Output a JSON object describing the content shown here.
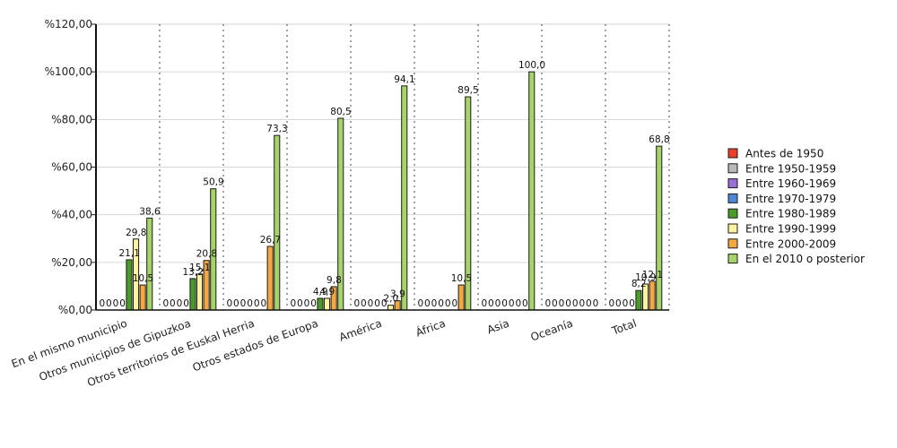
{
  "chart_data": {
    "type": "bar",
    "title": "",
    "xlabel": "",
    "ylabel": "",
    "ylim": [
      0,
      120
    ],
    "y_ticks": [
      "%0,00",
      "%20,00",
      "%40,00",
      "%60,00",
      "%80,00",
      "%100,00",
      "%120,00"
    ],
    "grid": "horizontal lines and dotted vertical separators between categories",
    "legend_position": "right",
    "categories": [
      "En el mismo municipio",
      "Otros municipios de Gipuzkoa",
      "Otros territorios de Euskal Herria",
      "Otros estados de Europa",
      "América",
      "África",
      "Asia",
      "Oceanía",
      "Total"
    ],
    "series": [
      {
        "name": "Antes de 1950",
        "color": "#e8402c",
        "values": [
          0,
          0,
          0,
          0,
          0,
          0,
          0,
          0,
          0
        ],
        "labels": [
          "0",
          "0",
          "0",
          "0",
          "0",
          "0",
          "0",
          "0",
          "0"
        ]
      },
      {
        "name": "Entre 1950-1959",
        "color": "#b9b9b9",
        "values": [
          0,
          0,
          0,
          0,
          0,
          0,
          0,
          0,
          0
        ],
        "labels": [
          "0",
          "0",
          "0",
          "0",
          "0",
          "0",
          "0",
          "0",
          "0"
        ]
      },
      {
        "name": "Entre 1960-1969",
        "color": "#9b6fd6",
        "values": [
          0,
          0,
          0,
          0,
          0,
          0,
          0,
          0,
          0
        ],
        "labels": [
          "0",
          "0",
          "0",
          "0",
          "0",
          "0",
          "0",
          "0",
          "0"
        ]
      },
      {
        "name": "Entre 1970-1979",
        "color": "#4f86d8",
        "values": [
          0,
          0,
          0,
          0,
          0,
          0,
          0,
          0,
          0
        ],
        "labels": [
          "0",
          "0",
          "0",
          "0",
          "0",
          "0",
          "0",
          "0",
          "0"
        ]
      },
      {
        "name": "Entre 1980-1989",
        "color": "#4c9a2a",
        "values": [
          21.1,
          13.2,
          0,
          4.9,
          0,
          0,
          0,
          0,
          8.2
        ],
        "labels": [
          "21,1",
          "13,2",
          "0",
          "4,9",
          "0",
          "0",
          "0",
          "0",
          "8,2"
        ]
      },
      {
        "name": "Entre 1990-1999",
        "color": "#fdf2a0",
        "values": [
          29.8,
          15.1,
          0,
          4.9,
          2.0,
          0,
          0,
          0,
          10.9
        ],
        "labels": [
          "29,8",
          "15,1",
          "0",
          "4,9",
          "2,0",
          "0",
          "0",
          "0",
          "10,9"
        ]
      },
      {
        "name": "Entre 2000-2009",
        "color": "#f5a742",
        "values": [
          10.5,
          20.8,
          26.7,
          9.8,
          3.9,
          10.5,
          0,
          0,
          12.1
        ],
        "labels": [
          "10,5",
          "20,8",
          "26,7",
          "9,8",
          "3,9",
          "10,5",
          "0",
          "0",
          "12,1"
        ]
      },
      {
        "name": "En el 2010 o posterior",
        "color": "#a6d46a",
        "values": [
          38.6,
          50.9,
          73.3,
          80.5,
          94.1,
          89.5,
          100.0,
          0,
          68.8
        ],
        "labels": [
          "38,6",
          "50,9",
          "73,3",
          "80,5",
          "94,1",
          "89,5",
          "100,0",
          "0",
          "68,8"
        ]
      }
    ]
  }
}
